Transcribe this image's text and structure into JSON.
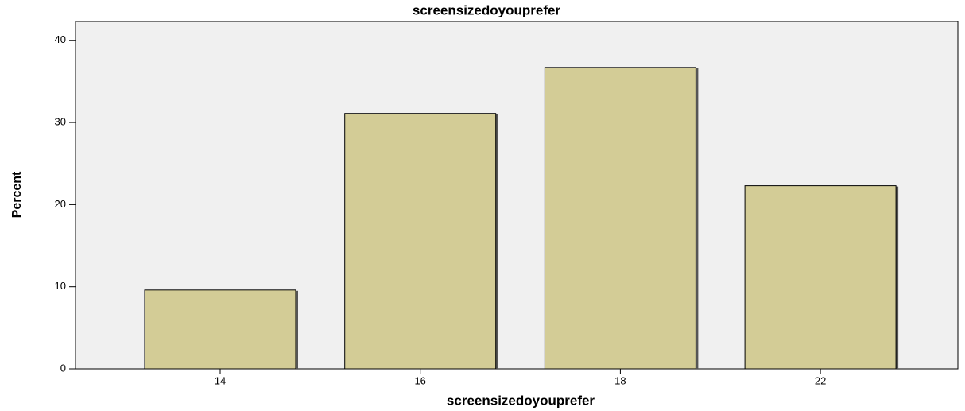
{
  "chart_data": {
    "type": "bar",
    "title": "screensizedoyouprefer",
    "x_label": "screensizedoyouprefer",
    "y_label": "Percent",
    "categories": [
      "14",
      "16",
      "18",
      "22"
    ],
    "values": [
      9.6,
      31.1,
      36.7,
      22.3
    ],
    "color": "#d3cc96",
    "ylim": [
      0,
      42.3
    ],
    "yticks": [
      0,
      10,
      20,
      30,
      40
    ],
    "grid": false
  }
}
